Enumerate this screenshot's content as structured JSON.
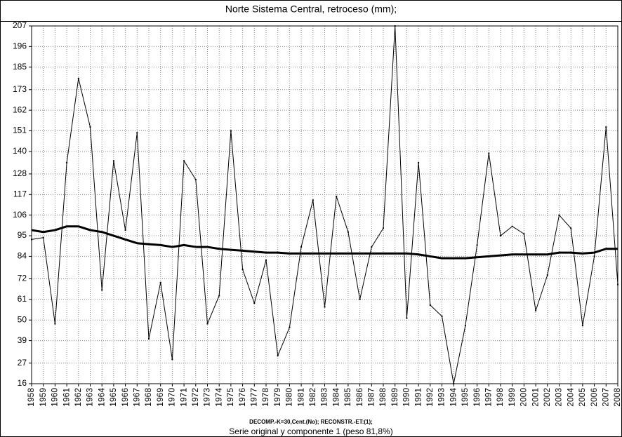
{
  "chart_data": {
    "type": "line",
    "title": "Norte Sistema Central, retroceso (mm);",
    "xlabel": [
      "DECOMP.-K=30,Cent.(No);    RECONSTR.-ET:(1);",
      "Serie original y componente 1 (peso 81,8%)"
    ],
    "x": [
      1958,
      1959,
      1960,
      1961,
      1962,
      1963,
      1964,
      1965,
      1966,
      1967,
      1968,
      1969,
      1970,
      1971,
      1972,
      1973,
      1974,
      1975,
      1976,
      1977,
      1978,
      1979,
      1980,
      1981,
      1982,
      1983,
      1984,
      1985,
      1986,
      1987,
      1988,
      1989,
      1990,
      1991,
      1992,
      1993,
      1994,
      1995,
      1996,
      1997,
      1998,
      1999,
      2000,
      2001,
      2002,
      2003,
      2004,
      2005,
      2006,
      2007,
      2008
    ],
    "series": [
      {
        "color": "#000000",
        "width": 1,
        "values": [
          93,
          94,
          48,
          134,
          179,
          153,
          66,
          135,
          98,
          150,
          40,
          70,
          29,
          135,
          125,
          48,
          63,
          151,
          77,
          59,
          82,
          31,
          46,
          89,
          114,
          57,
          116,
          97,
          61,
          89,
          99,
          207,
          51,
          134,
          58,
          52,
          16,
          47,
          90,
          139,
          95,
          100,
          96,
          55,
          74,
          106,
          99,
          47,
          84,
          153,
          69
        ]
      },
      {
        "color": "#000000",
        "width": 3,
        "values": [
          98,
          97,
          98,
          100,
          100,
          98,
          97,
          95,
          93,
          91,
          90.5,
          90,
          89,
          90,
          89,
          89,
          88,
          87.5,
          87,
          86.5,
          86,
          86,
          85.5,
          85.5,
          85.5,
          85.5,
          85.5,
          85.5,
          85.5,
          85.5,
          85.5,
          85.5,
          85.5,
          85,
          84,
          83,
          83,
          83,
          83.5,
          84,
          84.5,
          85,
          85,
          85,
          85,
          86,
          86,
          85.5,
          86,
          88,
          88
        ]
      }
    ],
    "xlim": [
      1958,
      2008
    ],
    "xticks": [
      1958,
      1959,
      1960,
      1961,
      1962,
      1963,
      1964,
      1965,
      1966,
      1967,
      1968,
      1969,
      1970,
      1971,
      1972,
      1973,
      1974,
      1975,
      1976,
      1977,
      1978,
      1979,
      1980,
      1981,
      1982,
      1983,
      1984,
      1985,
      1986,
      1987,
      1988,
      1989,
      1990,
      1991,
      1992,
      1993,
      1994,
      1995,
      1996,
      1997,
      1998,
      1999,
      2000,
      2001,
      2002,
      2003,
      2004,
      2005,
      2006,
      2007,
      2008
    ],
    "ylim": [
      16,
      207
    ],
    "yticks": [
      16,
      27,
      39,
      50,
      61,
      72,
      84,
      95,
      106,
      117,
      128,
      140,
      151,
      162,
      173,
      185,
      196,
      207
    ],
    "grid": true
  }
}
